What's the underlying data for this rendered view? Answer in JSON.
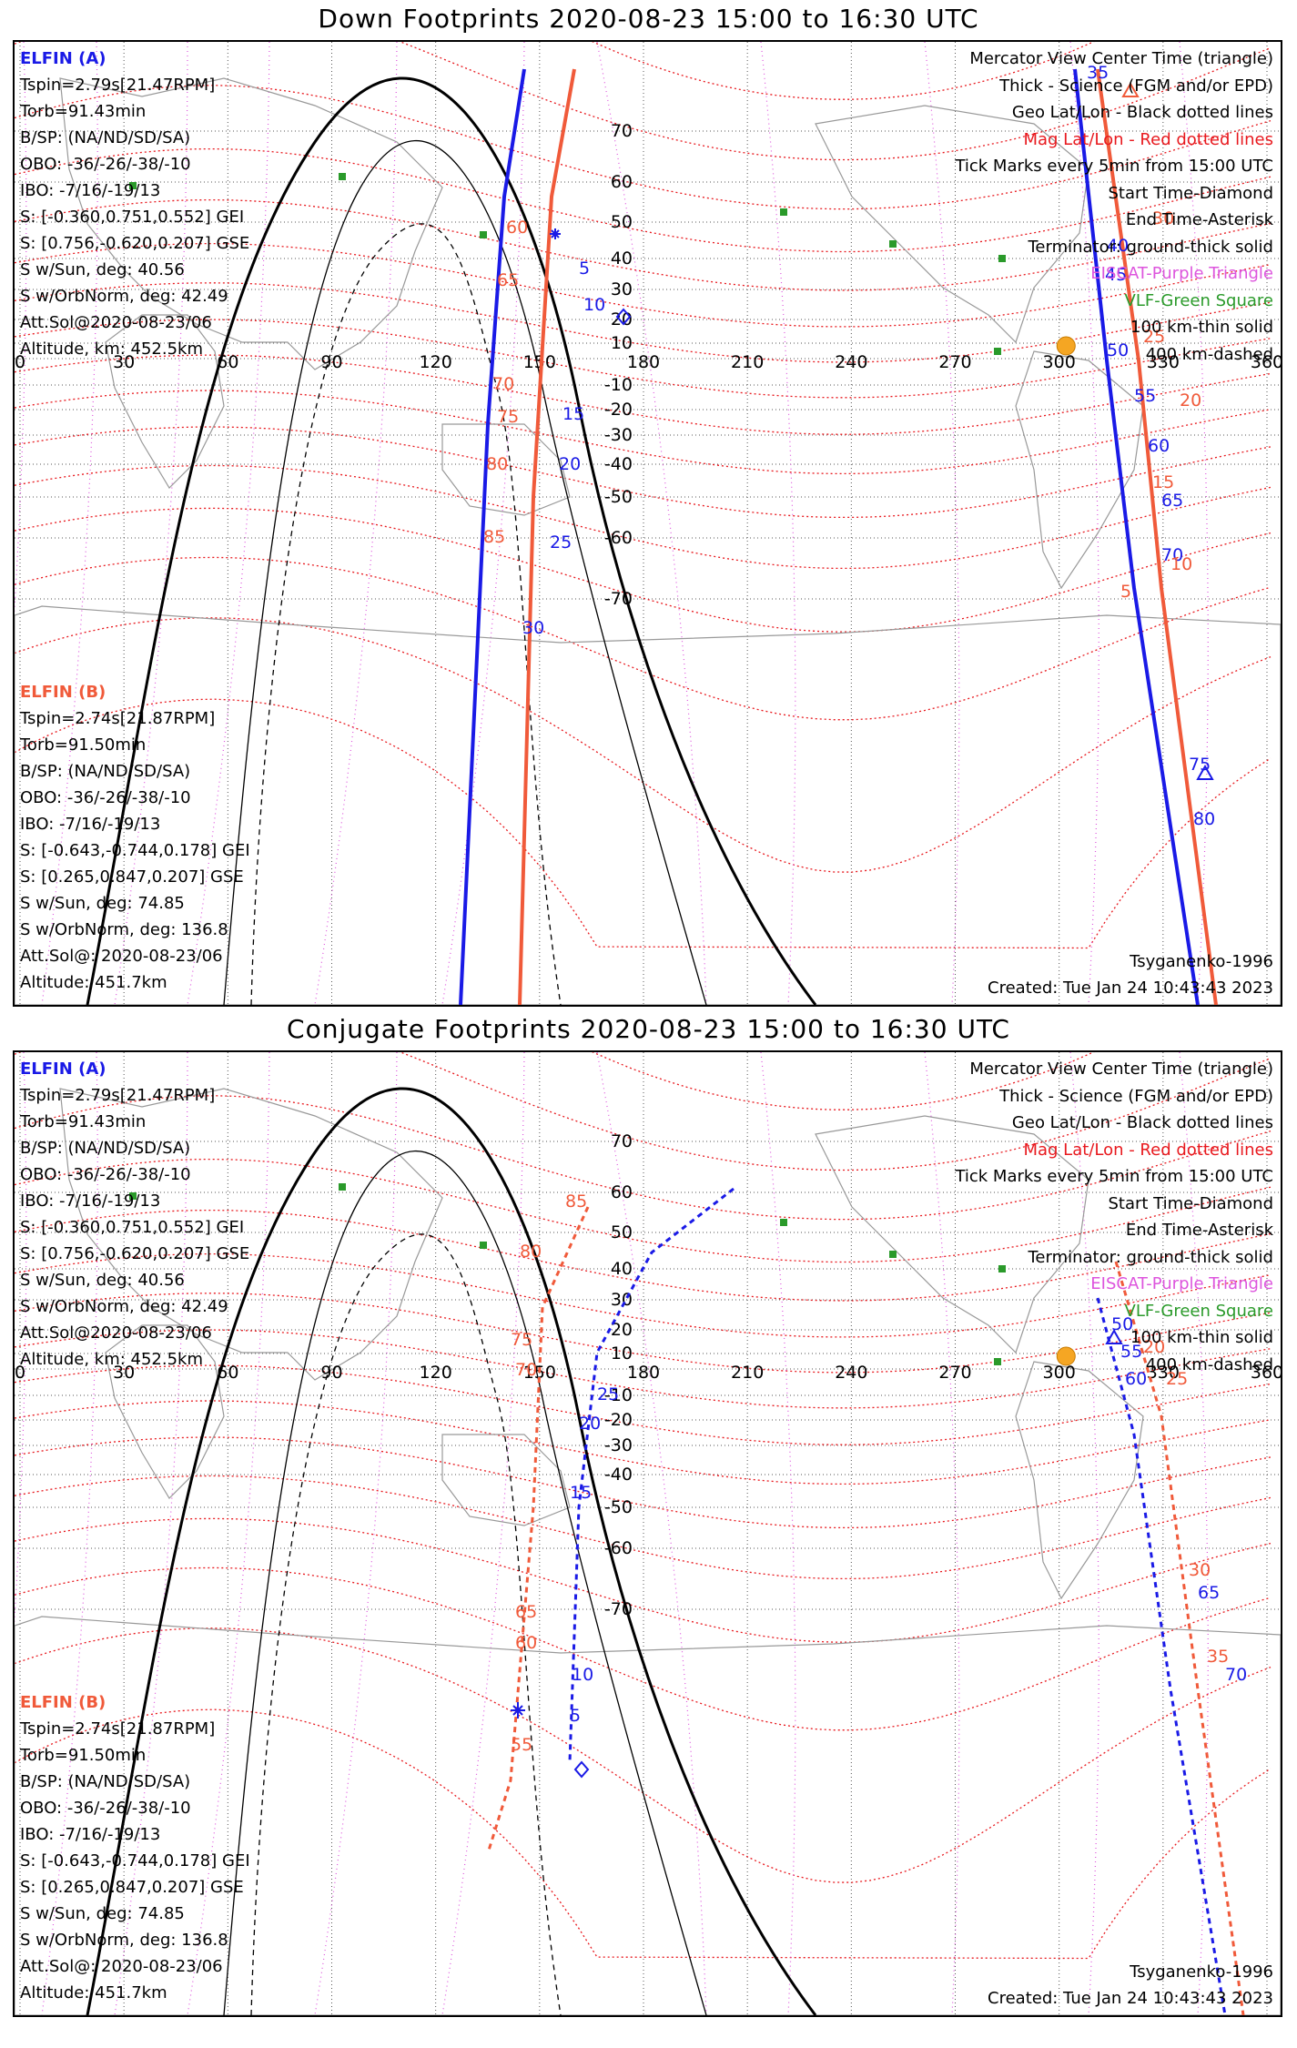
{
  "panels": [
    {
      "title": "Down Footprints 2020-08-23 15:00 to 16:30 UTC",
      "elfin_a": {
        "name": "ELFIN (A)",
        "lines": [
          "Tspin=2.79s[21.47RPM]",
          "Torb=91.43min",
          "B/SP: (NA/ND/SD/SA)",
          "OBO: -36/-26/-38/-10",
          "IBO: -7/16/-19/13",
          "S: [-0.360,0.751,0.552] GEI",
          "S: [0.756,-0.620,0.207] GSE",
          "S w/Sun, deg: 40.56",
          "S w/OrbNorm, deg: 42.49",
          "Att.Sol@2020-08-23/06",
          "Altitude, km: 452.5km"
        ]
      },
      "elfin_b": {
        "name": "ELFIN (B)",
        "lines": [
          "Tspin=2.74s[21.87RPM]",
          "Torb=91.50min",
          "B/SP: (NA/ND/SD/SA)",
          "OBO: -36/-26/-38/-10",
          "IBO: -7/16/-19/13",
          "S: [-0.643,-0.744,0.178] GEI",
          "S: [0.265,0.847,0.207] GSE",
          "S w/Sun, deg: 74.85",
          "S w/OrbNorm, deg: 136.8",
          "Att.Sol@: 2020-08-23/06",
          "Altitude: 451.7km"
        ]
      },
      "legend": [
        {
          "text": "Mercator View Center Time (triangle)",
          "color": "#000000"
        },
        {
          "text": "Thick - Science (FGM and/or EPD)",
          "color": "#000000"
        },
        {
          "text": "Geo Lat/Lon - Black dotted lines",
          "color": "#000000"
        },
        {
          "text": "Mag Lat/Lon - Red dotted lines",
          "color": "#e8191e"
        },
        {
          "text": "Tick Marks every 5min from 15:00 UTC",
          "color": "#000000"
        },
        {
          "text": "Start Time-Diamond",
          "color": "#000000"
        },
        {
          "text": "End Time-Asterisk",
          "color": "#000000"
        },
        {
          "text": "Terminator: ground-thick solid",
          "color": "#000000"
        },
        {
          "text": "EISCAT-Purple Triangle",
          "color": "#dd55dd"
        },
        {
          "text": "VLF-Green Square",
          "color": "#2a9a2a"
        },
        {
          "text": "100 km-thin solid",
          "color": "#000000"
        },
        {
          "text": "400 km-dashed",
          "color": "#000000"
        }
      ],
      "model": "Tsyganenko-1996",
      "created": "Created: Tue Jan 24 10:43:43 2023",
      "lon_ticks": [
        "0",
        "30",
        "60",
        "90",
        "120",
        "150",
        "180",
        "210",
        "240",
        "270",
        "300",
        "330",
        "360"
      ],
      "lat_ticks": [
        "70",
        "60",
        "50",
        "40",
        "30",
        "20",
        "10",
        "-10",
        "-20",
        "-30",
        "-40",
        "-50",
        "-60",
        "-70"
      ],
      "track_a_labels": [
        "5",
        "10",
        "15",
        "20",
        "25",
        "30",
        "35",
        "40",
        "45",
        "50",
        "55",
        "60",
        "65",
        "70",
        "75",
        "80"
      ],
      "track_b_labels": [
        "60",
        "65",
        "70",
        "75",
        "80",
        "85",
        "5",
        "10",
        "15",
        "20",
        "25",
        "30"
      ]
    },
    {
      "title": "Conjugate Footprints 2020-08-23 15:00 to 16:30 UTC",
      "elfin_a": {
        "name": "ELFIN (A)",
        "lines": [
          "Tspin=2.79s[21.47RPM]",
          "Torb=91.43min",
          "B/SP: (NA/ND/SD/SA)",
          "OBO: -36/-26/-38/-10",
          "IBO: -7/16/-19/13",
          "S: [-0.360,0.751,0.552] GEI",
          "S: [0.756,-0.620,0.207] GSE",
          "S w/Sun, deg: 40.56",
          "S w/OrbNorm, deg: 42.49",
          "Att.Sol@2020-08-23/06",
          "Altitude, km: 452.5km"
        ]
      },
      "elfin_b": {
        "name": "ELFIN (B)",
        "lines": [
          "Tspin=2.74s[21.87RPM]",
          "Torb=91.50min",
          "B/SP: (NA/ND/SD/SA)",
          "OBO: -36/-26/-38/-10",
          "IBO: -7/16/-19/13",
          "S: [-0.643,-0.744,0.178] GEI",
          "S: [0.265,0.847,0.207] GSE",
          "S w/Sun, deg: 74.85",
          "S w/OrbNorm, deg: 136.8",
          "Att.Sol@: 2020-08-23/06",
          "Altitude: 451.7km"
        ]
      },
      "legend": [
        {
          "text": "Mercator View Center Time (triangle)",
          "color": "#000000"
        },
        {
          "text": "Thick - Science (FGM and/or EPD)",
          "color": "#000000"
        },
        {
          "text": "Geo Lat/Lon - Black dotted lines",
          "color": "#000000"
        },
        {
          "text": "Mag Lat/Lon - Red dotted lines",
          "color": "#e8191e"
        },
        {
          "text": "Tick Marks every 5min from 15:00 UTC",
          "color": "#000000"
        },
        {
          "text": "Start Time-Diamond",
          "color": "#000000"
        },
        {
          "text": "End Time-Asterisk",
          "color": "#000000"
        },
        {
          "text": "Terminator: ground-thick solid",
          "color": "#000000"
        },
        {
          "text": "EISCAT-Purple Triangle",
          "color": "#dd55dd"
        },
        {
          "text": "VLF-Green Square",
          "color": "#2a9a2a"
        },
        {
          "text": "100 km-thin solid",
          "color": "#000000"
        },
        {
          "text": "400 km-dashed",
          "color": "#000000"
        }
      ],
      "model": "Tsyganenko-1996",
      "created": "Created: Tue Jan 24 10:43:43 2023",
      "lon_ticks": [
        "0",
        "30",
        "60",
        "90",
        "120",
        "150",
        "180",
        "210",
        "240",
        "270",
        "300",
        "330",
        "360"
      ],
      "lat_ticks": [
        "70",
        "60",
        "50",
        "40",
        "30",
        "20",
        "10",
        "-10",
        "-20",
        "-30",
        "-40",
        "-50",
        "-60",
        "-70"
      ],
      "track_a_labels": [
        "5",
        "10",
        "15",
        "20",
        "25",
        "50",
        "55",
        "60",
        "65",
        "70"
      ],
      "track_b_labels": [
        "85",
        "80",
        "75",
        "70",
        "65",
        "60",
        "55",
        "20",
        "25",
        "30",
        "35"
      ]
    }
  ],
  "colors": {
    "elfin_a": "#1a1ae6",
    "elfin_b": "#f05a3a",
    "mag_grid": "#e8191e",
    "eiscat": "#dd55dd",
    "vlf": "#2a9a2a",
    "sun": "#f5a623"
  }
}
